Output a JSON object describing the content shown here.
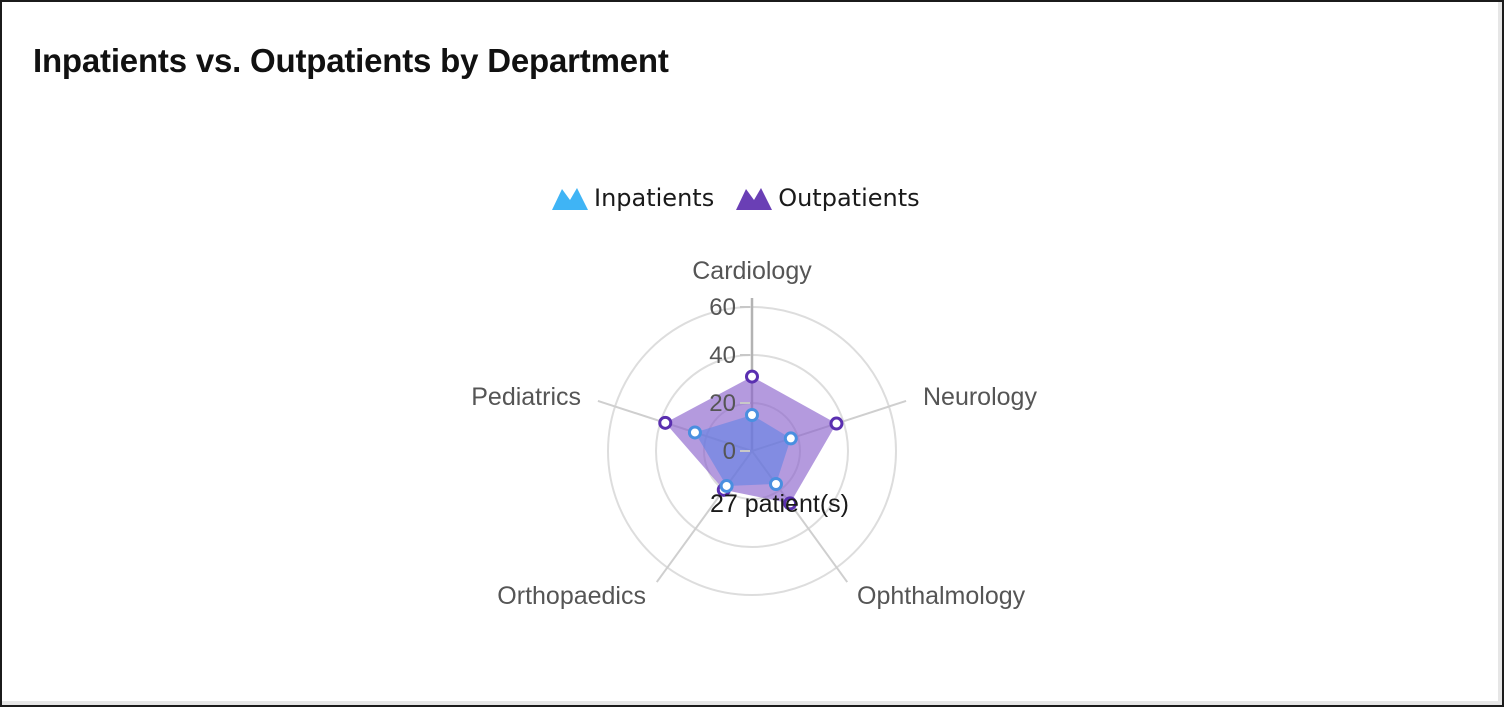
{
  "card": {
    "title": "Inpatients vs. Outpatients by Department"
  },
  "legend": {
    "items": [
      {
        "label": "Inpatients",
        "icon": "mountain-area-icon",
        "color": "#3fb4f5"
      },
      {
        "label": "Outpatients",
        "icon": "mountain-area-icon",
        "color": "#6a3fb5"
      }
    ]
  },
  "tooltip": {
    "text": "27 patient(s)"
  },
  "chart_data": {
    "type": "radar",
    "title": "Inpatients vs. Outpatients by Department",
    "categories": [
      "Cardiology",
      "Neurology",
      "Ophthalmology",
      "Orthopaedics",
      "Pediatrics"
    ],
    "series": [
      {
        "name": "Inpatients",
        "values": [
          15,
          17,
          17,
          18,
          25
        ],
        "color": "#3fb4f5",
        "point_color": "#4a8fe0",
        "fill": "rgba(90,130,230,0.55)"
      },
      {
        "name": "Outpatients",
        "values": [
          31,
          37,
          27,
          20,
          38
        ],
        "color": "#6a3fb5",
        "point_color": "#5a2fb0",
        "fill": "rgba(140,100,205,0.65)"
      }
    ],
    "radial_ticks": [
      0,
      20,
      40,
      60
    ],
    "rlim": [
      0,
      60
    ],
    "grid": true,
    "legend_position": "top",
    "tooltip": {
      "category": "Ophthalmology",
      "series": "Outpatients",
      "text": "27 patient(s)"
    }
  }
}
